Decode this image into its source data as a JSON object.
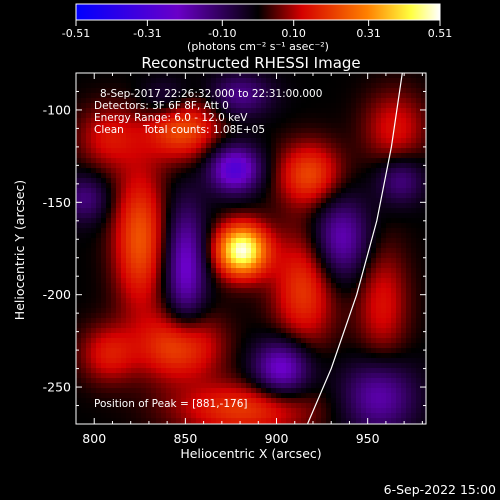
{
  "colorbar": {
    "ticks": [
      "-0.51",
      "-0.31",
      "-0.10",
      "0.10",
      "0.31",
      "0.51"
    ],
    "tick_values": [
      -0.51,
      -0.31,
      -0.1,
      0.1,
      0.31,
      0.51
    ],
    "range": [
      -0.51,
      0.51
    ],
    "units": "(photons cm⁻² s⁻¹ asec⁻²)",
    "colors": [
      "#0000ff",
      "#6a00c8",
      "#000000",
      "#d40000",
      "#ff8000",
      "#ffff40",
      "#ffffff"
    ]
  },
  "chart_data": {
    "type": "heatmap",
    "title": "Reconstructed RHESSI Image",
    "xlabel": "Heliocentric X (arcsec)",
    "ylabel": "Heliocentric Y (arcsec)",
    "xlim": [
      790,
      982
    ],
    "ylim": [
      -270,
      -80
    ],
    "xticks": [
      "800",
      "850",
      "900",
      "950"
    ],
    "xtick_values": [
      800,
      850,
      900,
      950
    ],
    "yticks": [
      "-100",
      "-150",
      "-200",
      "-250"
    ],
    "ytick_values": [
      -100,
      -150,
      -200,
      -250
    ],
    "peak": {
      "x": 881,
      "y": -176,
      "value": 0.51
    },
    "blobs": [
      {
        "x": 881,
        "y": -176,
        "sx": 10,
        "sy": 10,
        "v": 0.5
      },
      {
        "x": 847,
        "y": -228,
        "sx": 15,
        "sy": 13,
        "v": 0.24
      },
      {
        "x": 825,
        "y": -170,
        "sx": 10,
        "sy": 26,
        "v": 0.24
      },
      {
        "x": 848,
        "y": -110,
        "sx": 14,
        "sy": 12,
        "v": 0.24
      },
      {
        "x": 918,
        "y": -135,
        "sx": 12,
        "sy": 12,
        "v": 0.22
      },
      {
        "x": 915,
        "y": -197,
        "sx": 12,
        "sy": 22,
        "v": 0.2
      },
      {
        "x": 882,
        "y": -262,
        "sx": 26,
        "sy": 10,
        "v": 0.2
      },
      {
        "x": 958,
        "y": -205,
        "sx": 10,
        "sy": 22,
        "v": 0.14
      },
      {
        "x": 808,
        "y": -232,
        "sx": 11,
        "sy": 11,
        "v": 0.15
      },
      {
        "x": 808,
        "y": -115,
        "sx": 12,
        "sy": 12,
        "v": 0.14
      },
      {
        "x": 965,
        "y": -110,
        "sx": 12,
        "sy": 14,
        "v": 0.14
      },
      {
        "x": 877,
        "y": -132,
        "sx": 10,
        "sy": 9,
        "v": -0.3
      },
      {
        "x": 903,
        "y": -240,
        "sx": 11,
        "sy": 11,
        "v": -0.26
      },
      {
        "x": 850,
        "y": -185,
        "sx": 8,
        "sy": 24,
        "v": -0.24
      },
      {
        "x": 935,
        "y": -170,
        "sx": 11,
        "sy": 16,
        "v": -0.22
      },
      {
        "x": 795,
        "y": -148,
        "sx": 9,
        "sy": 9,
        "v": -0.14
      },
      {
        "x": 840,
        "y": -95,
        "sx": 10,
        "sy": 8,
        "v": -0.12
      },
      {
        "x": 956,
        "y": -255,
        "sx": 14,
        "sy": 14,
        "v": -0.2
      },
      {
        "x": 880,
        "y": -92,
        "sx": 12,
        "sy": 8,
        "v": -0.16
      },
      {
        "x": 968,
        "y": -138,
        "sx": 9,
        "sy": 9,
        "v": -0.15
      }
    ],
    "limb": [
      [
        969,
        -80
      ],
      [
        963,
        -120
      ],
      [
        955,
        -160
      ],
      [
        944,
        -200
      ],
      [
        930,
        -240
      ],
      [
        917,
        -270
      ]
    ],
    "annotations": {
      "time_range": "8-Sep-2017 22:26:32.000 to 22:31:00.000",
      "detectors": "Detectors: 3F 6F 8F, Att 0",
      "energy": "Energy Range: 6.0 - 12.0 keV",
      "algorithm": "Clean",
      "counts": "Total counts: 1.08E+05",
      "peak": "Position of Peak = [881,-176]"
    }
  },
  "footer": {
    "date": "6-Sep-2022 15:00"
  }
}
